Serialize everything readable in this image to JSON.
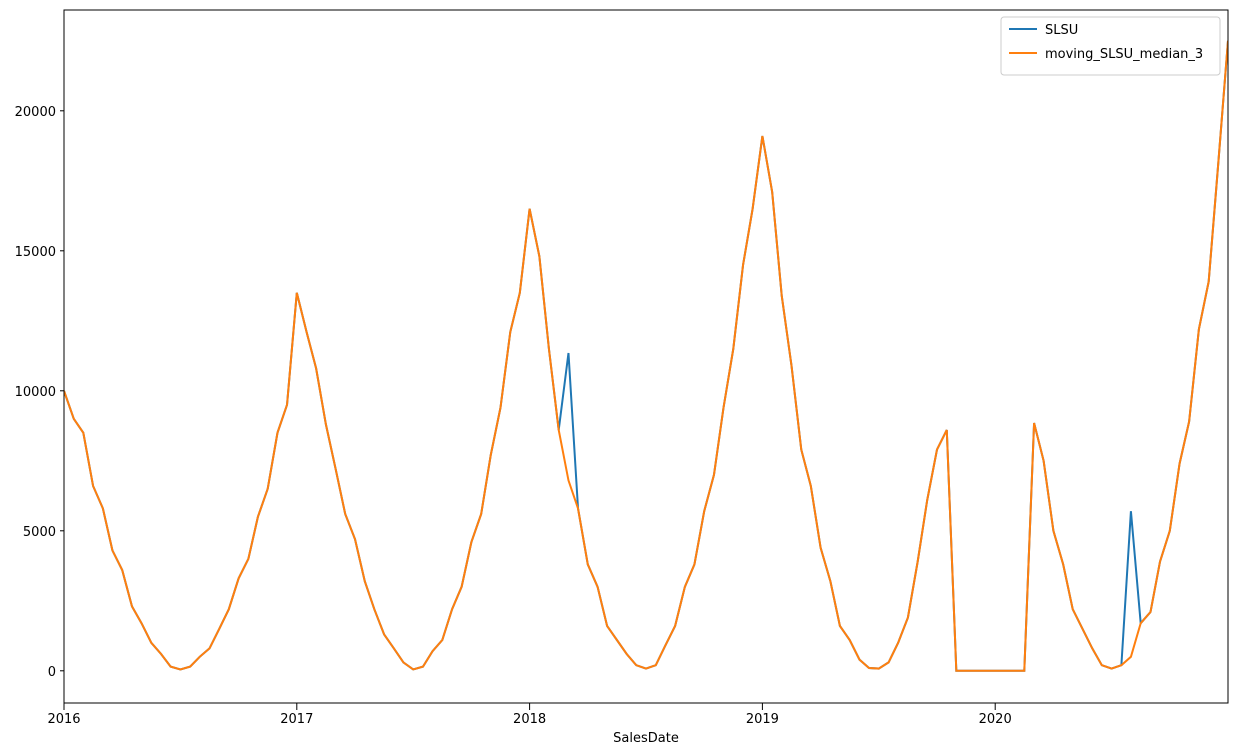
{
  "chart_data": {
    "type": "line",
    "x_label": "SalesDate",
    "x": [
      2016,
      2016.042,
      2016.083,
      2016.125,
      2016.167,
      2016.208,
      2016.25,
      2016.292,
      2016.333,
      2016.375,
      2016.417,
      2016.458,
      2016.5,
      2016.542,
      2016.583,
      2016.625,
      2016.667,
      2016.708,
      2016.75,
      2016.792,
      2016.833,
      2016.875,
      2016.917,
      2016.958,
      2017,
      2017.042,
      2017.083,
      2017.125,
      2017.167,
      2017.208,
      2017.25,
      2017.292,
      2017.333,
      2017.375,
      2017.417,
      2017.458,
      2017.5,
      2017.542,
      2017.583,
      2017.625,
      2017.667,
      2017.708,
      2017.75,
      2017.792,
      2017.833,
      2017.875,
      2017.917,
      2017.958,
      2018,
      2018.042,
      2018.083,
      2018.125,
      2018.167,
      2018.208,
      2018.25,
      2018.292,
      2018.333,
      2018.375,
      2018.417,
      2018.458,
      2018.5,
      2018.542,
      2018.583,
      2018.625,
      2018.667,
      2018.708,
      2018.75,
      2018.792,
      2018.833,
      2018.875,
      2018.917,
      2018.958,
      2019,
      2019.042,
      2019.083,
      2019.125,
      2019.167,
      2019.208,
      2019.25,
      2019.292,
      2019.333,
      2019.375,
      2019.417,
      2019.458,
      2019.5,
      2019.542,
      2019.583,
      2019.625,
      2019.667,
      2019.708,
      2019.75,
      2019.792,
      2019.833,
      2019.875,
      2019.917,
      2019.958,
      2020,
      2020.042,
      2020.083,
      2020.125,
      2020.167,
      2020.208,
      2020.25,
      2020.292,
      2020.333,
      2020.375,
      2020.417,
      2020.458,
      2020.5,
      2020.542,
      2020.583,
      2020.625,
      2020.667,
      2020.708,
      2020.75,
      2020.792,
      2020.833,
      2020.875,
      2020.917,
      2020.958,
      2021
    ],
    "series": [
      {
        "name": "SLSU",
        "color": "#1f77b4",
        "values": [
          10000,
          9000,
          8500,
          6600,
          5800,
          4300,
          3600,
          2300,
          1700,
          1000,
          600,
          150,
          50,
          150,
          500,
          800,
          1500,
          2200,
          3300,
          4000,
          5500,
          6500,
          8500,
          9500,
          13500,
          12100,
          10800,
          8800,
          7200,
          5600,
          4700,
          3200,
          2200,
          1300,
          800,
          300,
          50,
          150,
          700,
          1100,
          2200,
          3000,
          4600,
          5600,
          7700,
          9400,
          12100,
          13500,
          16500,
          14800,
          11500,
          8600,
          11350,
          5800,
          3800,
          3000,
          1600,
          1100,
          600,
          200,
          80,
          200,
          900,
          1600,
          3000,
          3800,
          5700,
          7000,
          9400,
          11500,
          14500,
          16500,
          19100,
          17100,
          13400,
          10900,
          7900,
          6600,
          4400,
          3200,
          1600,
          1100,
          400,
          100,
          80,
          300,
          1000,
          1900,
          3900,
          6100,
          7900,
          8600,
          0,
          0,
          0,
          0,
          0,
          0,
          0,
          0,
          8850,
          7500,
          5000,
          3800,
          2200,
          1500,
          800,
          200,
          80,
          200,
          5700,
          1700,
          2100,
          3900,
          5000,
          7400,
          8900,
          12200,
          13900,
          18100,
          22500
        ]
      },
      {
        "name": "moving_SLSU_median_3",
        "color": "#ff7f0e",
        "values": [
          10000,
          9000,
          8500,
          6600,
          5800,
          4300,
          3600,
          2300,
          1700,
          1000,
          600,
          150,
          50,
          150,
          500,
          800,
          1500,
          2200,
          3300,
          4000,
          5500,
          6500,
          8500,
          9500,
          13500,
          12100,
          10800,
          8800,
          7200,
          5600,
          4700,
          3200,
          2200,
          1300,
          800,
          300,
          50,
          150,
          700,
          1100,
          2200,
          3000,
          4600,
          5600,
          7700,
          9400,
          12100,
          13500,
          16500,
          14800,
          11500,
          8600,
          6800,
          5800,
          3800,
          3000,
          1600,
          1100,
          600,
          200,
          80,
          200,
          900,
          1600,
          3000,
          3800,
          5700,
          7000,
          9400,
          11500,
          14500,
          16500,
          19100,
          17100,
          13400,
          10900,
          7900,
          6600,
          4400,
          3200,
          1600,
          1100,
          400,
          100,
          80,
          300,
          1000,
          1900,
          3900,
          6100,
          7900,
          8600,
          0,
          0,
          0,
          0,
          0,
          0,
          0,
          0,
          8850,
          7500,
          5000,
          3800,
          2200,
          1500,
          800,
          200,
          80,
          200,
          500,
          1700,
          2100,
          3900,
          5000,
          7400,
          8900,
          12200,
          13900,
          18100,
          22500
        ]
      }
    ],
    "xlim": [
      2016,
      2021
    ],
    "xticks": [
      2016,
      2017,
      2018,
      2019,
      2020
    ],
    "ylim": [
      -1150,
      23600
    ],
    "yticks": [
      0,
      5000,
      10000,
      15000,
      20000
    ],
    "legend": "upper right"
  }
}
